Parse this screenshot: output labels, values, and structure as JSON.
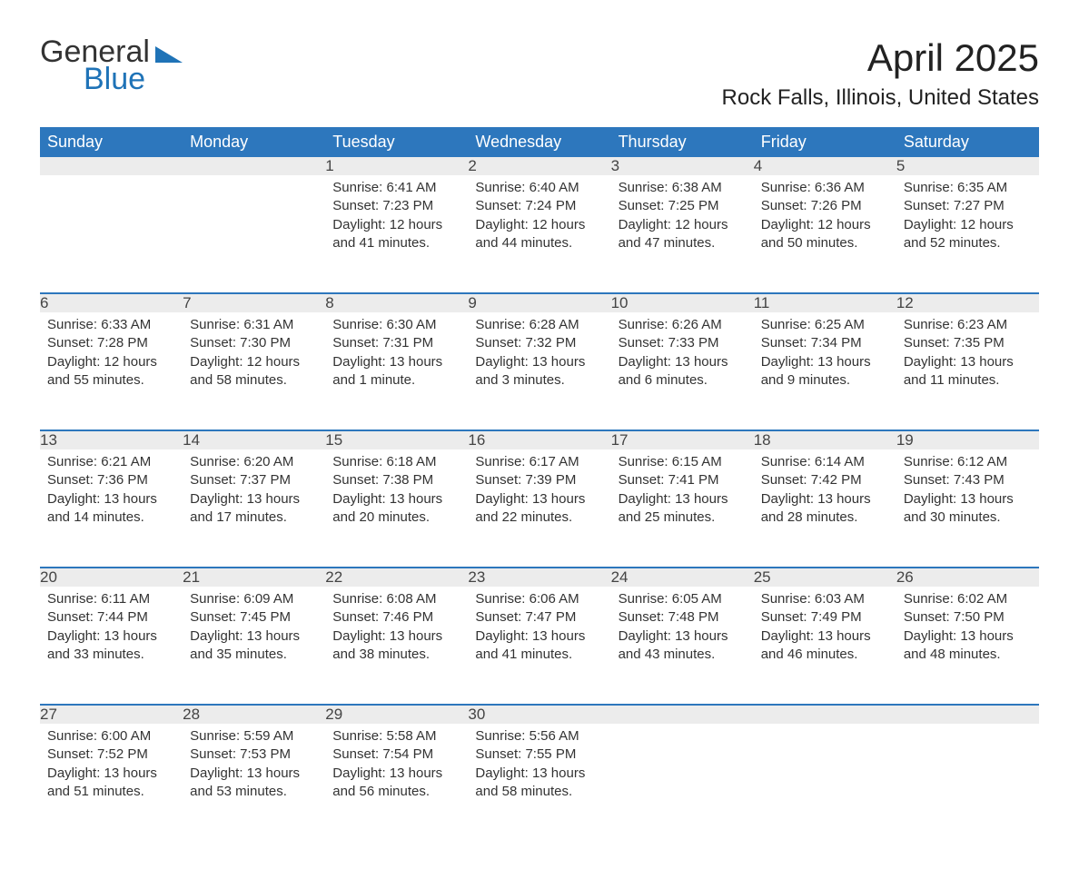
{
  "logo": {
    "word1": "General",
    "word2": "Blue"
  },
  "title": "April 2025",
  "location": "Rock Falls, Illinois, United States",
  "day_headers": [
    "Sunday",
    "Monday",
    "Tuesday",
    "Wednesday",
    "Thursday",
    "Friday",
    "Saturday"
  ],
  "colors": {
    "header_bg": "#2d77bd",
    "header_text": "#ffffff",
    "daynum_bg": "#ececec",
    "border": "#2d77bd",
    "logo_blue": "#1f73b7",
    "body_text": "#333333",
    "background": "#ffffff"
  },
  "typography": {
    "title_fontsize": 42,
    "location_fontsize": 24,
    "header_fontsize": 18,
    "daynum_fontsize": 17,
    "cell_fontsize": 15
  },
  "layout": {
    "columns": 7,
    "rows": 5,
    "first_day_col": 2
  },
  "weeks": [
    [
      null,
      null,
      {
        "n": "1",
        "sunrise": "Sunrise: 6:41 AM",
        "sunset": "Sunset: 7:23 PM",
        "daylight": "Daylight: 12 hours and 41 minutes."
      },
      {
        "n": "2",
        "sunrise": "Sunrise: 6:40 AM",
        "sunset": "Sunset: 7:24 PM",
        "daylight": "Daylight: 12 hours and 44 minutes."
      },
      {
        "n": "3",
        "sunrise": "Sunrise: 6:38 AM",
        "sunset": "Sunset: 7:25 PM",
        "daylight": "Daylight: 12 hours and 47 minutes."
      },
      {
        "n": "4",
        "sunrise": "Sunrise: 6:36 AM",
        "sunset": "Sunset: 7:26 PM",
        "daylight": "Daylight: 12 hours and 50 minutes."
      },
      {
        "n": "5",
        "sunrise": "Sunrise: 6:35 AM",
        "sunset": "Sunset: 7:27 PM",
        "daylight": "Daylight: 12 hours and 52 minutes."
      }
    ],
    [
      {
        "n": "6",
        "sunrise": "Sunrise: 6:33 AM",
        "sunset": "Sunset: 7:28 PM",
        "daylight": "Daylight: 12 hours and 55 minutes."
      },
      {
        "n": "7",
        "sunrise": "Sunrise: 6:31 AM",
        "sunset": "Sunset: 7:30 PM",
        "daylight": "Daylight: 12 hours and 58 minutes."
      },
      {
        "n": "8",
        "sunrise": "Sunrise: 6:30 AM",
        "sunset": "Sunset: 7:31 PM",
        "daylight": "Daylight: 13 hours and 1 minute."
      },
      {
        "n": "9",
        "sunrise": "Sunrise: 6:28 AM",
        "sunset": "Sunset: 7:32 PM",
        "daylight": "Daylight: 13 hours and 3 minutes."
      },
      {
        "n": "10",
        "sunrise": "Sunrise: 6:26 AM",
        "sunset": "Sunset: 7:33 PM",
        "daylight": "Daylight: 13 hours and 6 minutes."
      },
      {
        "n": "11",
        "sunrise": "Sunrise: 6:25 AM",
        "sunset": "Sunset: 7:34 PM",
        "daylight": "Daylight: 13 hours and 9 minutes."
      },
      {
        "n": "12",
        "sunrise": "Sunrise: 6:23 AM",
        "sunset": "Sunset: 7:35 PM",
        "daylight": "Daylight: 13 hours and 11 minutes."
      }
    ],
    [
      {
        "n": "13",
        "sunrise": "Sunrise: 6:21 AM",
        "sunset": "Sunset: 7:36 PM",
        "daylight": "Daylight: 13 hours and 14 minutes."
      },
      {
        "n": "14",
        "sunrise": "Sunrise: 6:20 AM",
        "sunset": "Sunset: 7:37 PM",
        "daylight": "Daylight: 13 hours and 17 minutes."
      },
      {
        "n": "15",
        "sunrise": "Sunrise: 6:18 AM",
        "sunset": "Sunset: 7:38 PM",
        "daylight": "Daylight: 13 hours and 20 minutes."
      },
      {
        "n": "16",
        "sunrise": "Sunrise: 6:17 AM",
        "sunset": "Sunset: 7:39 PM",
        "daylight": "Daylight: 13 hours and 22 minutes."
      },
      {
        "n": "17",
        "sunrise": "Sunrise: 6:15 AM",
        "sunset": "Sunset: 7:41 PM",
        "daylight": "Daylight: 13 hours and 25 minutes."
      },
      {
        "n": "18",
        "sunrise": "Sunrise: 6:14 AM",
        "sunset": "Sunset: 7:42 PM",
        "daylight": "Daylight: 13 hours and 28 minutes."
      },
      {
        "n": "19",
        "sunrise": "Sunrise: 6:12 AM",
        "sunset": "Sunset: 7:43 PM",
        "daylight": "Daylight: 13 hours and 30 minutes."
      }
    ],
    [
      {
        "n": "20",
        "sunrise": "Sunrise: 6:11 AM",
        "sunset": "Sunset: 7:44 PM",
        "daylight": "Daylight: 13 hours and 33 minutes."
      },
      {
        "n": "21",
        "sunrise": "Sunrise: 6:09 AM",
        "sunset": "Sunset: 7:45 PM",
        "daylight": "Daylight: 13 hours and 35 minutes."
      },
      {
        "n": "22",
        "sunrise": "Sunrise: 6:08 AM",
        "sunset": "Sunset: 7:46 PM",
        "daylight": "Daylight: 13 hours and 38 minutes."
      },
      {
        "n": "23",
        "sunrise": "Sunrise: 6:06 AM",
        "sunset": "Sunset: 7:47 PM",
        "daylight": "Daylight: 13 hours and 41 minutes."
      },
      {
        "n": "24",
        "sunrise": "Sunrise: 6:05 AM",
        "sunset": "Sunset: 7:48 PM",
        "daylight": "Daylight: 13 hours and 43 minutes."
      },
      {
        "n": "25",
        "sunrise": "Sunrise: 6:03 AM",
        "sunset": "Sunset: 7:49 PM",
        "daylight": "Daylight: 13 hours and 46 minutes."
      },
      {
        "n": "26",
        "sunrise": "Sunrise: 6:02 AM",
        "sunset": "Sunset: 7:50 PM",
        "daylight": "Daylight: 13 hours and 48 minutes."
      }
    ],
    [
      {
        "n": "27",
        "sunrise": "Sunrise: 6:00 AM",
        "sunset": "Sunset: 7:52 PM",
        "daylight": "Daylight: 13 hours and 51 minutes."
      },
      {
        "n": "28",
        "sunrise": "Sunrise: 5:59 AM",
        "sunset": "Sunset: 7:53 PM",
        "daylight": "Daylight: 13 hours and 53 minutes."
      },
      {
        "n": "29",
        "sunrise": "Sunrise: 5:58 AM",
        "sunset": "Sunset: 7:54 PM",
        "daylight": "Daylight: 13 hours and 56 minutes."
      },
      {
        "n": "30",
        "sunrise": "Sunrise: 5:56 AM",
        "sunset": "Sunset: 7:55 PM",
        "daylight": "Daylight: 13 hours and 58 minutes."
      },
      null,
      null,
      null
    ]
  ]
}
